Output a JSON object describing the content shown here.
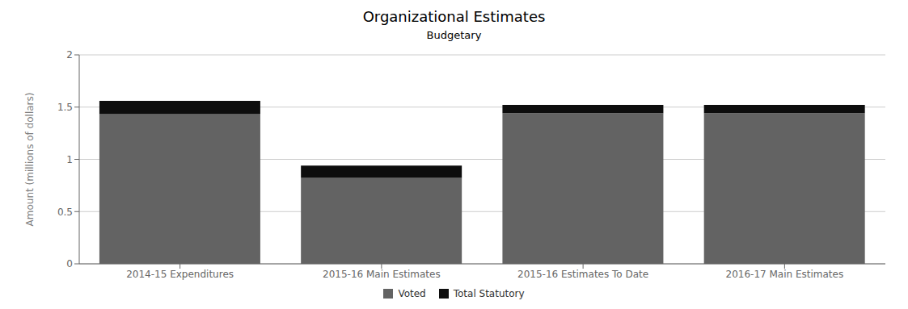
{
  "chart_data": {
    "type": "bar",
    "title": "Organizational Estimates",
    "subtitle": "Budgetary",
    "categories": [
      "2014-15 Expenditures",
      "2015-16 Main Estimates",
      "2015-16 Estimates To Date",
      "2016-17 Main Estimates"
    ],
    "series": [
      {
        "name": "Voted",
        "color": "#636363",
        "values": [
          1.432,
          0.822,
          1.443,
          1.443
        ]
      },
      {
        "name": "Total Statutory",
        "color": "#0d0d0d",
        "values": [
          0.128,
          0.118,
          0.078,
          0.078
        ]
      }
    ],
    "stacked": true,
    "ylabel": "Amount (millions of dollars)",
    "ylim": [
      0,
      2.0
    ],
    "yticks": [
      0,
      0.5,
      1,
      1.5,
      2
    ],
    "grid": true,
    "legend": "bottom"
  }
}
